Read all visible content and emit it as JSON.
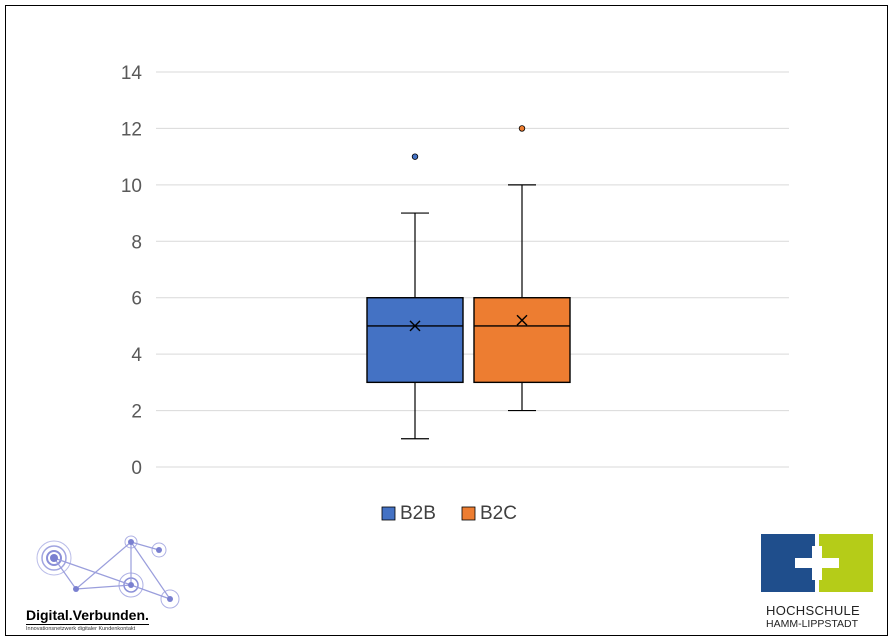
{
  "chart_data": {
    "type": "boxplot",
    "title": "",
    "xlabel": "",
    "ylabel": "",
    "ylim": [
      0,
      14
    ],
    "yticks": [
      0,
      2,
      4,
      6,
      8,
      10,
      12,
      14
    ],
    "grid": true,
    "legend_position": "bottom",
    "series": [
      {
        "name": "B2B",
        "color": "#4472C4",
        "min": 1,
        "q1": 3,
        "median": 5,
        "q3": 6,
        "max": 9,
        "mean": 5.0,
        "outliers": [
          11
        ]
      },
      {
        "name": "B2C",
        "color": "#ED7D31",
        "min": 2,
        "q1": 3,
        "median": 5,
        "q3": 6,
        "max": 10,
        "mean": 5.2,
        "outliers": [
          12
        ]
      }
    ]
  },
  "logos": {
    "left_title": "Digital.Verbunden.",
    "left_subtitle": "Innovationsnetzwerk digitaler Kundenkontakt",
    "left_colors": {
      "ring": "#8A8FD8",
      "line": "#9A9EDC"
    },
    "right_line1": "HOCHSCHULE",
    "right_line2": "HAMM-LIPPSTADT",
    "right_colors": {
      "blue": "#1F4E8C",
      "green": "#B5CC18"
    }
  }
}
